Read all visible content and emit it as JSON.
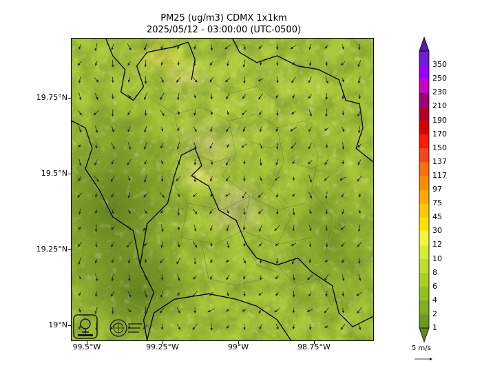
{
  "title_line1": "PM25 (ug/m3) CDMX 1x1km",
  "title_line2": "2025/05/12 - 03:00:00 (UTC-0500)",
  "y_axis": {
    "ticks": [
      {
        "label": "19.75°N",
        "lat": 19.75
      },
      {
        "label": "19.5°N",
        "lat": 19.5
      },
      {
        "label": "19.25°N",
        "lat": 19.25
      },
      {
        "label": "19°N",
        "lat": 19.0
      }
    ]
  },
  "x_axis": {
    "ticks": [
      {
        "label": "99.5°W",
        "lon": -99.5
      },
      {
        "label": "99.25°W",
        "lon": -99.25
      },
      {
        "label": "99°W",
        "lon": -99.0
      },
      {
        "label": "98.75°W",
        "lon": -98.75
      }
    ]
  },
  "colorbar": {
    "levels": [
      "1",
      "2",
      "4",
      "6",
      "8",
      "10",
      "12",
      "30",
      "45",
      "75",
      "97",
      "117",
      "137",
      "150",
      "170",
      "190",
      "210",
      "230",
      "250",
      "350"
    ],
    "colors": [
      "#6a9a1f",
      "#7fae1f",
      "#94c020",
      "#a8cf24",
      "#bce02a",
      "#d3ee33",
      "#f0f542",
      "#ffe100",
      "#ffc800",
      "#ffab00",
      "#ff8c00",
      "#ff6e0f",
      "#f5461e",
      "#ff1a00",
      "#d80000",
      "#b0002a",
      "#9c0077",
      "#c800c8",
      "#9a00ff",
      "#6c1fd6"
    ],
    "under_color": "#5f8a1c",
    "over_color": "#5a1aa8"
  },
  "wind_legend": {
    "label": "5 m/s"
  },
  "logos": [
    "sedema-logo",
    "ciudad-de-mexico-logo"
  ]
}
